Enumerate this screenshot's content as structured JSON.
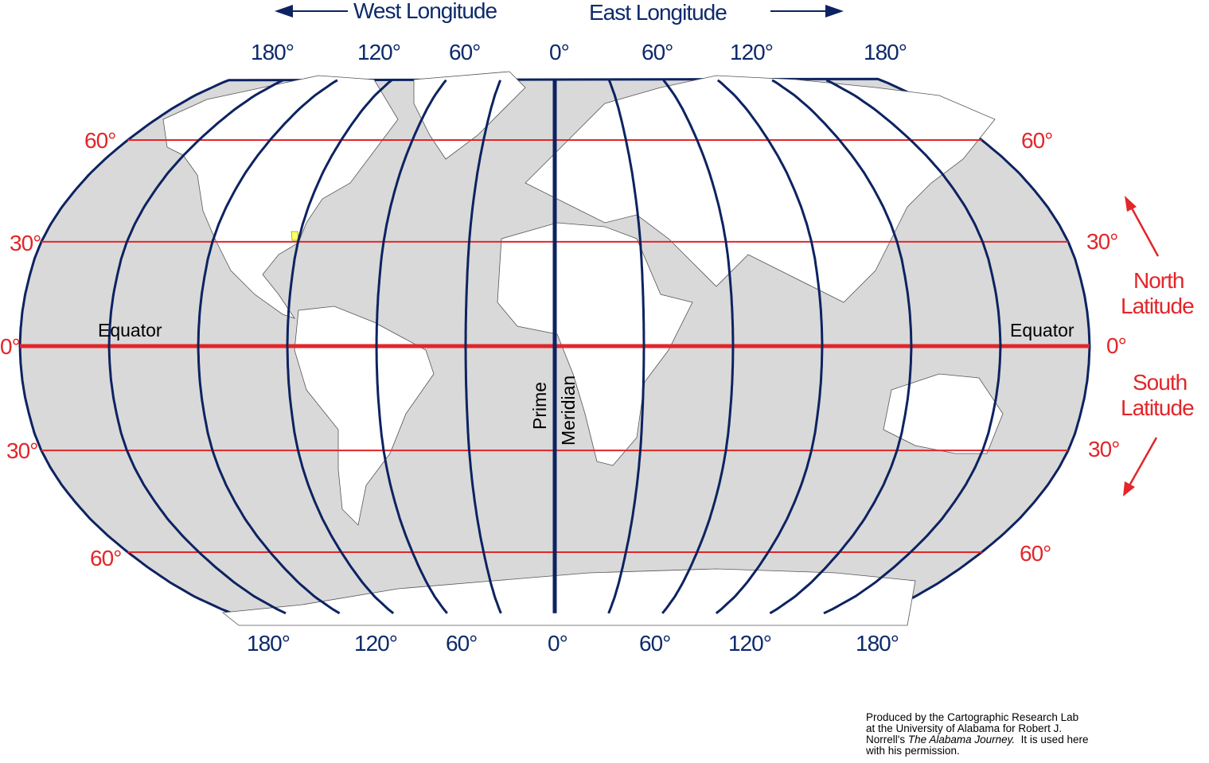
{
  "headers": {
    "west": "West Longitude",
    "east": "East Longitude"
  },
  "longitude_labels_top": [
    "180°",
    "120°",
    "60°",
    "0°",
    "60°",
    "120°",
    "180°"
  ],
  "longitude_labels_bottom": [
    "180°",
    "120°",
    "60°",
    "0°",
    "60°",
    "120°",
    "180°"
  ],
  "latitude_labels_left": [
    "60°",
    "30°",
    "0°",
    "30°",
    "60°"
  ],
  "latitude_labels_right": [
    "60°",
    "30°",
    "0°",
    "30°",
    "60°"
  ],
  "equator_label": "Equator",
  "prime_meridian_label": {
    "line1": "Prime",
    "line2": "Meridian"
  },
  "north_latitude": {
    "line1": "North",
    "line2": "Latitude"
  },
  "south_latitude": {
    "line1": "South",
    "line2": "Latitude"
  },
  "credit": {
    "line1": "Produced by the Cartographic Research Lab",
    "line2": "at the University of Alabama for Robert J.",
    "line3_prefix": "Norrell's ",
    "line3_italic": "The Alabama Journey.",
    "line3_suffix": "  It is used here",
    "line4": "with his permission."
  },
  "map": {
    "projection": "Robinson",
    "meridian_interval_deg": 30,
    "parallels_deg": [
      60,
      30,
      0,
      -30,
      -60
    ],
    "highlight": "Alabama",
    "colors": {
      "ocean": "#d9d9d9",
      "land": "#ffffff",
      "meridians": "#0d2361",
      "parallels": "#e2262a",
      "highlight": "#ffff66"
    }
  }
}
